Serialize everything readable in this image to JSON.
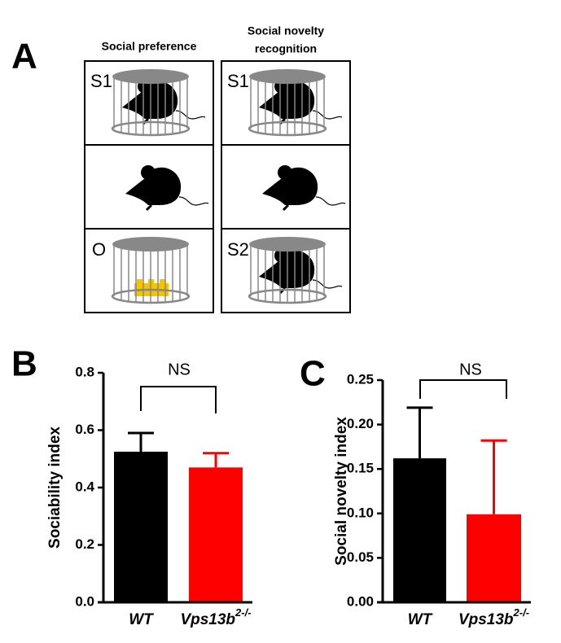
{
  "panel_a": {
    "panel_label": "A",
    "column_headers": [
      "Social preference",
      [
        "Social novelty",
        "recognition"
      ]
    ],
    "cell_labels": [
      "S1",
      "O",
      "S1",
      "S2"
    ]
  },
  "chart_data": [
    {
      "type": "bar",
      "panel_label": "B",
      "ylabel": "Sociability index",
      "categories": [
        "WT",
        "Vps13b"
      ],
      "category_superscripts": [
        null,
        "2-/-"
      ],
      "values": [
        0.525,
        0.47
      ],
      "errors": [
        0.065,
        0.05
      ],
      "colors": [
        "#000000",
        "#ff0000"
      ],
      "ylim": [
        0,
        0.8
      ],
      "yticks": [
        {
          "value": 0,
          "label": "0.0"
        },
        0.2,
        0.4,
        0.6,
        0.8
      ],
      "annotation": "NS"
    },
    {
      "type": "bar",
      "panel_label": "C",
      "ylabel": "Social novelty index",
      "categories": [
        "WT",
        "Vps13b"
      ],
      "category_superscripts": [
        null,
        "2-/-"
      ],
      "values": [
        0.162,
        0.099
      ],
      "errors": [
        0.057,
        0.083
      ],
      "colors": [
        "#000000",
        "#ff0000"
      ],
      "ylim": [
        0,
        0.25
      ],
      "yticks": [
        {
          "value": 0,
          "label": "0.00"
        },
        0.05,
        {
          "value": 0.1,
          "label": "0.10"
        },
        0.15,
        {
          "value": 0.2,
          "label": "0.20"
        },
        0.25
      ],
      "annotation": "NS"
    }
  ]
}
